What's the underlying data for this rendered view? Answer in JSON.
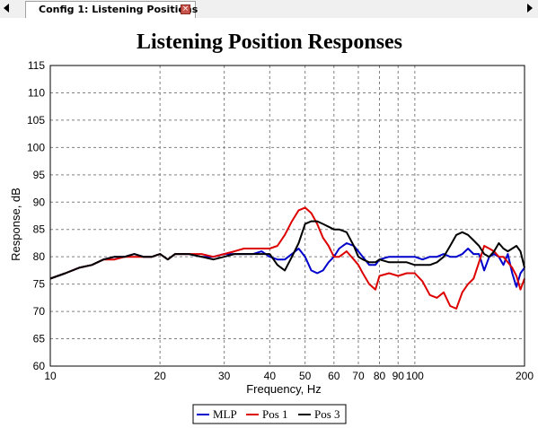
{
  "tab": {
    "label": "Config 1: Listening Positions",
    "close_glyph": "×"
  },
  "colors": {
    "mlp": "#0000cc",
    "pos1": "#dd0000",
    "pos3": "#000000",
    "grid": "#808080"
  },
  "icons": {
    "tab_left": "triangle-left-icon",
    "tab_right": "triangle-right-icon",
    "tab_close": "close-icon"
  },
  "chart_data": {
    "type": "line",
    "title": "Listening Position Responses",
    "xlabel": "Frequency, Hz",
    "ylabel": "Response, dB",
    "xscale": "log",
    "xlim": [
      10,
      200
    ],
    "ylim": [
      60,
      115
    ],
    "grid": true,
    "legend_position": "bottom",
    "x_ticks": [
      "10",
      "20",
      "30",
      "40",
      "50",
      "60",
      "70",
      "80",
      "90",
      "100",
      "200"
    ],
    "y_ticks": [
      "60",
      "65",
      "70",
      "75",
      "80",
      "85",
      "90",
      "95",
      "100",
      "105",
      "110",
      "115"
    ],
    "series": [
      {
        "name": "MLP",
        "color": "#0000cc",
        "x": [
          10,
          11,
          12,
          13,
          14,
          15,
          16,
          17,
          18,
          19,
          20,
          21,
          22,
          24,
          26,
          28,
          30,
          32,
          34,
          36,
          38,
          40,
          42,
          44,
          46,
          48,
          50,
          52,
          54,
          56,
          58,
          60,
          62,
          65,
          68,
          70,
          72,
          75,
          78,
          80,
          85,
          90,
          95,
          100,
          105,
          110,
          115,
          120,
          125,
          130,
          135,
          140,
          145,
          150,
          155,
          160,
          165,
          170,
          175,
          180,
          185,
          190,
          195,
          200
        ],
        "y": [
          76,
          77,
          78,
          78.5,
          79.5,
          80,
          80,
          80.5,
          80,
          80,
          80.5,
          79.5,
          80.5,
          80.5,
          80,
          80,
          80.5,
          80.5,
          80.5,
          80.5,
          81,
          80,
          79.5,
          79.5,
          80.5,
          81.5,
          80,
          77.5,
          77,
          77.5,
          79,
          80,
          81.5,
          82.5,
          82,
          81,
          80,
          78.5,
          78.5,
          79.5,
          80,
          80,
          80,
          80,
          79.5,
          80,
          80,
          80.5,
          80,
          80,
          80.5,
          81.5,
          80.5,
          80.5,
          77.5,
          80,
          80.5,
          80,
          78.5,
          80.5,
          77,
          74.5,
          77,
          78
        ]
      },
      {
        "name": "Pos 1",
        "color": "#dd0000",
        "x": [
          10,
          11,
          12,
          13,
          14,
          15,
          16,
          17,
          18,
          19,
          20,
          21,
          22,
          24,
          26,
          28,
          30,
          32,
          34,
          36,
          38,
          40,
          42,
          44,
          46,
          48,
          50,
          52,
          54,
          56,
          58,
          60,
          62,
          65,
          68,
          70,
          72,
          75,
          78,
          80,
          85,
          90,
          95,
          100,
          105,
          110,
          115,
          120,
          125,
          130,
          135,
          140,
          145,
          150,
          155,
          160,
          165,
          170,
          175,
          180,
          185,
          190,
          195,
          200
        ],
        "y": [
          76,
          77,
          78,
          78.5,
          79.5,
          79.5,
          80,
          80,
          80,
          80,
          80.5,
          79.5,
          80.5,
          80.5,
          80.5,
          80,
          80.5,
          81,
          81.5,
          81.5,
          81.5,
          81.5,
          82,
          84,
          86.5,
          88.5,
          89,
          88,
          86,
          83.5,
          82,
          80,
          80,
          81,
          79.5,
          78.5,
          77,
          75,
          74,
          76.5,
          77,
          76.5,
          77,
          77,
          75.5,
          73,
          72.5,
          73.5,
          71,
          70.5,
          73.5,
          75,
          76,
          79,
          82,
          81.5,
          81,
          80,
          80,
          79,
          78,
          76.5,
          74,
          76
        ]
      },
      {
        "name": "Pos 3",
        "color": "#000000",
        "x": [
          10,
          11,
          12,
          13,
          14,
          15,
          16,
          17,
          18,
          19,
          20,
          21,
          22,
          24,
          26,
          28,
          30,
          32,
          34,
          36,
          38,
          40,
          42,
          44,
          46,
          48,
          50,
          52,
          54,
          56,
          58,
          60,
          62,
          65,
          68,
          70,
          72,
          75,
          78,
          80,
          85,
          90,
          95,
          100,
          105,
          110,
          115,
          120,
          125,
          130,
          135,
          140,
          145,
          150,
          155,
          160,
          165,
          170,
          175,
          180,
          185,
          190,
          195,
          200
        ],
        "y": [
          76,
          77,
          78,
          78.5,
          79.5,
          80,
          80,
          80.5,
          80,
          80,
          80.5,
          79.5,
          80.5,
          80.5,
          80,
          79.5,
          80,
          80.5,
          80.5,
          80.5,
          80.5,
          80.5,
          78.5,
          77.5,
          80,
          82.5,
          86,
          86.5,
          86.5,
          86,
          85.5,
          85,
          85,
          84.5,
          82,
          80,
          79.5,
          79,
          79,
          79.5,
          79,
          79,
          79,
          78.5,
          78.5,
          78.5,
          79,
          80,
          82,
          84,
          84.5,
          84,
          83,
          82,
          80.5,
          80,
          81,
          82.5,
          81.5,
          81,
          81.5,
          82,
          81,
          78
        ]
      }
    ]
  }
}
